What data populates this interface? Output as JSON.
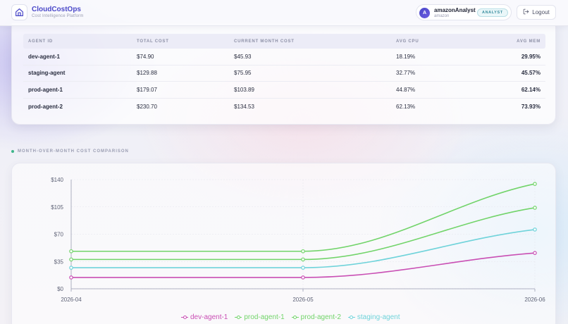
{
  "header": {
    "brand_title": "CloudCostOps",
    "brand_subtitle": "Cost Intelligence Platform",
    "user_initial": "A",
    "user_name": "amazonAnalyst",
    "user_org": "amazon",
    "role_badge": "ANALYST",
    "logout_label": "Logout"
  },
  "table": {
    "columns": [
      "AGENT ID",
      "TOTAL COST",
      "CURRENT MONTH COST",
      "AVG CPU",
      "AVG MEM"
    ],
    "rows": [
      [
        "dev-agent-1",
        "$74.90",
        "$45.93",
        "18.19%",
        "29.95%"
      ],
      [
        "staging-agent",
        "$129.88",
        "$75.95",
        "32.77%",
        "45.57%"
      ],
      [
        "prod-agent-1",
        "$179.07",
        "$103.89",
        "44.87%",
        "62.14%"
      ],
      [
        "prod-agent-2",
        "$230.70",
        "$134.53",
        "62.13%",
        "73.93%"
      ]
    ]
  },
  "section": {
    "title": "MONTH-OVER-MONTH COST COMPARISON"
  },
  "chart_data": {
    "type": "line",
    "x": [
      "2026-04",
      "2026-05",
      "2026-06"
    ],
    "yticks": [
      "$0",
      "$35",
      "$70",
      "$105",
      "$140"
    ],
    "ylim": [
      0,
      140
    ],
    "grid": true,
    "legend_position": "bottom",
    "series": [
      {
        "name": "dev-agent-1",
        "color": "#c94fb4",
        "values": [
          14.5,
          14.5,
          45.9
        ]
      },
      {
        "name": "prod-agent-1",
        "color": "#72d46a",
        "values": [
          37.6,
          37.6,
          103.9
        ]
      },
      {
        "name": "prod-agent-2",
        "color": "#72d46a",
        "values": [
          48.1,
          48.1,
          134.5
        ]
      },
      {
        "name": "staging-agent",
        "color": "#6fd3da",
        "values": [
          27.0,
          27.0,
          75.95
        ]
      }
    ]
  }
}
